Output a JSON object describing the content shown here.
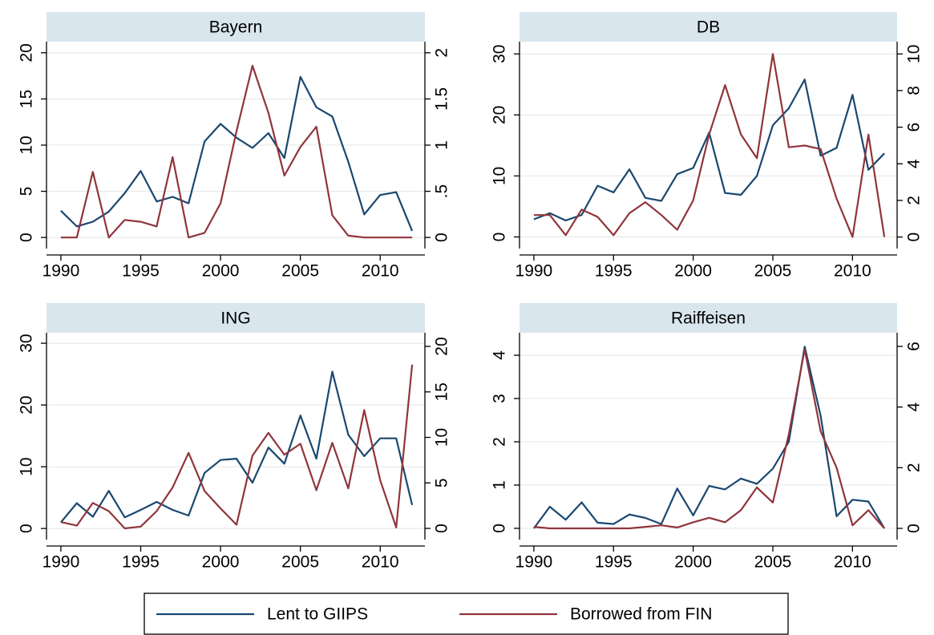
{
  "chart_data": [
    {
      "type": "line",
      "title": "Bayern",
      "x": [
        1990,
        1991,
        1992,
        1993,
        1994,
        1995,
        1996,
        1997,
        1998,
        1999,
        2000,
        2001,
        2002,
        2003,
        2004,
        2005,
        2006,
        2007,
        2008,
        2009,
        2010,
        2011,
        2012
      ],
      "xlim": [
        1989.1,
        2012.8
      ],
      "xticks": [
        1990,
        1995,
        2000,
        2005,
        2010
      ],
      "ylim": [
        -1.2,
        21.2
      ],
      "yticks": [
        0,
        5,
        10,
        15,
        20
      ],
      "y2lim": [
        -0.12,
        2.12
      ],
      "y2ticks": [
        0,
        {
          "value": 0.5,
          "label": ".5"
        },
        1,
        1.5,
        2
      ],
      "grid": true,
      "series": [
        {
          "values": [
            2.9,
            1.2,
            1.7,
            2.8,
            4.8,
            7.2,
            3.9,
            4.4,
            3.7,
            10.4,
            12.3,
            10.8,
            9.7,
            11.3,
            8.6,
            17.4,
            14.1,
            13.1,
            8.2,
            2.5,
            4.6,
            4.9,
            0.7
          ]
        },
        {
          "axis": "y2",
          "values": [
            0,
            0,
            0.71,
            0,
            0.19,
            0.17,
            0.12,
            0.87,
            0,
            0.05,
            0.37,
            1.15,
            1.86,
            1.35,
            0.67,
            0.98,
            1.2,
            0.24,
            0.02,
            0,
            0,
            0,
            0
          ]
        }
      ]
    },
    {
      "type": "line",
      "title": "DB",
      "x": [
        1990,
        1991,
        1992,
        1993,
        1994,
        1995,
        1996,
        1997,
        1998,
        1999,
        2000,
        2001,
        2002,
        2003,
        2004,
        2005,
        2006,
        2007,
        2008,
        2009,
        2010,
        2011,
        2012
      ],
      "xlim": [
        1989.1,
        2012.8
      ],
      "xticks": [
        1990,
        1995,
        2000,
        2005,
        2010
      ],
      "ylim": [
        -1.9,
        32
      ],
      "yticks": [
        0,
        10,
        20,
        30
      ],
      "y2lim": [
        -0.63,
        10.67
      ],
      "y2ticks": [
        0,
        2,
        4,
        6,
        8,
        10
      ],
      "grid": true,
      "series": [
        {
          "values": [
            2.9,
            3.9,
            2.7,
            3.6,
            8.4,
            7.3,
            11.1,
            6.4,
            5.9,
            10.3,
            11.3,
            17.1,
            7.2,
            6.9,
            10,
            18.3,
            21.1,
            25.8,
            13.3,
            14.6,
            23.3,
            11,
            13.7
          ]
        },
        {
          "axis": "y2",
          "values": [
            1.2,
            1.2,
            0.1,
            1.5,
            1.1,
            0.1,
            1.3,
            1.9,
            1.2,
            0.4,
            2,
            5.6,
            8.3,
            5.6,
            4.3,
            10,
            4.9,
            5,
            4.8,
            2.1,
            0,
            5.6,
            0
          ]
        }
      ]
    },
    {
      "type": "line",
      "title": "ING",
      "x": [
        1990,
        1991,
        1992,
        1993,
        1994,
        1995,
        1996,
        1997,
        1998,
        1999,
        2000,
        2001,
        2002,
        2003,
        2004,
        2005,
        2006,
        2007,
        2008,
        2009,
        2010,
        2011,
        2012
      ],
      "xlim": [
        1989.1,
        2012.8
      ],
      "xticks": [
        1990,
        1995,
        2000,
        2005,
        2010
      ],
      "ylim": [
        -1.8,
        31.7
      ],
      "yticks": [
        0,
        10,
        20,
        30
      ],
      "y2lim": [
        -1.23,
        21.5
      ],
      "y2ticks": [
        0,
        5,
        10,
        15,
        20
      ],
      "grid": true,
      "series": [
        {
          "values": [
            1,
            4.1,
            1.9,
            6.1,
            1.8,
            3,
            4.3,
            3,
            2.1,
            9,
            11.1,
            11.3,
            7.4,
            13.1,
            10.5,
            18.3,
            11.3,
            25.4,
            15.2,
            11.7,
            14.6,
            14.6,
            3.8
          ]
        },
        {
          "axis": "y2",
          "values": [
            0.7,
            0.3,
            2.8,
            1.9,
            0,
            0.2,
            1.9,
            4.5,
            8.3,
            4.1,
            2.2,
            0.4,
            8,
            10.5,
            8.1,
            9.3,
            4.2,
            9.4,
            4.4,
            13,
            5.3,
            0.1,
            18
          ]
        }
      ]
    },
    {
      "type": "line",
      "title": "Raiffeisen",
      "x": [
        1990,
        1991,
        1992,
        1993,
        1994,
        1995,
        1996,
        1997,
        1998,
        1999,
        2000,
        2001,
        2002,
        2003,
        2004,
        2005,
        2006,
        2007,
        2008,
        2009,
        2010,
        2011,
        2012
      ],
      "xlim": [
        1989.1,
        2012.8
      ],
      "xticks": [
        1990,
        1995,
        2000,
        2005,
        2010
      ],
      "ylim": [
        -0.26,
        4.52
      ],
      "yticks": [
        0,
        1,
        2,
        3,
        4
      ],
      "y2lim": [
        -0.37,
        6.45
      ],
      "y2ticks": [
        0,
        2,
        4,
        6
      ],
      "grid": true,
      "series": [
        {
          "values": [
            0,
            0.5,
            0.2,
            0.6,
            0.13,
            0.1,
            0.32,
            0.24,
            0.1,
            0.92,
            0.3,
            0.98,
            0.9,
            1.15,
            1.03,
            1.38,
            2,
            4.2,
            2.6,
            0.28,
            0.66,
            0.62,
            0
          ]
        },
        {
          "axis": "y2",
          "values": [
            0.05,
            0,
            0,
            0,
            0,
            0,
            0,
            0.05,
            0.1,
            0.03,
            0.2,
            0.35,
            0.2,
            0.6,
            1.35,
            0.85,
            3.1,
            5.9,
            3.2,
            2,
            0.1,
            0.6,
            0
          ]
        }
      ]
    }
  ],
  "legend": [
    {
      "name": "Lent to GIIPS",
      "color": "#1a476f"
    },
    {
      "name": "Borrowed from FIN",
      "color": "#90353b"
    }
  ]
}
